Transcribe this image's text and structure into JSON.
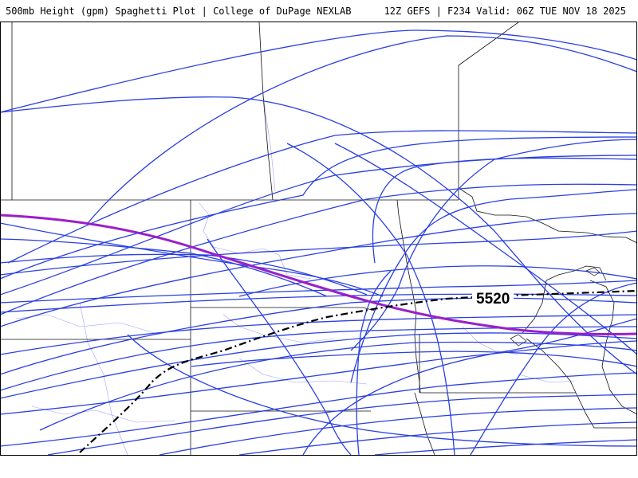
{
  "header": {
    "left_title": "500mb Height (gpm) Spaghetti Plot | College of DuPage NEXLAB",
    "right_title": "12Z GEFS | F234 Valid: 06Z TUE NOV 18 2025"
  },
  "map": {
    "contour_label": "5520",
    "colors": {
      "ensemble_members": "#2a3fe0",
      "mean_contour": "#9b1fc9",
      "threshold_contour": "#000000",
      "state_borders": "#000000",
      "county_borders": "#8a8af0"
    }
  }
}
